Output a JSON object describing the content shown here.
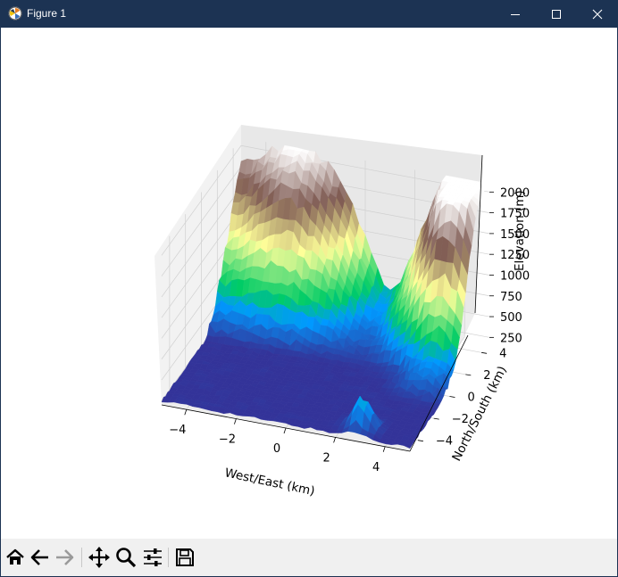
{
  "window": {
    "title": "Figure 1",
    "controls": [
      "minimize",
      "maximize",
      "close"
    ]
  },
  "toolbar": {
    "buttons": [
      "home-icon",
      "back-icon",
      "forward-icon",
      "pan-icon",
      "zoom-icon",
      "configure-subplots-icon",
      "save-icon"
    ]
  },
  "chart_data": {
    "type": "surface",
    "title": "",
    "xlabel": "West/East (km)",
    "ylabel": "North/South (km)",
    "zlabel": "Elevation (m)",
    "x_ticks": [
      "−4",
      "−2",
      "0",
      "2",
      "4"
    ],
    "y_ticks": [
      "−4",
      "−2",
      "0",
      "2",
      "4"
    ],
    "z_ticks": [
      "250",
      "500",
      "750",
      "1000",
      "1250",
      "1500",
      "1750",
      "2000"
    ],
    "xlim": [
      -5,
      5
    ],
    "ylim": [
      -5,
      5
    ],
    "zlim": [
      200,
      2100
    ],
    "colormap": "terrain",
    "grid": true,
    "peaks": [
      {
        "x": -2.7,
        "y": 4.0,
        "elevation": 2000
      },
      {
        "x": 4.0,
        "y": 3.0,
        "elevation": 2100
      }
    ],
    "base_elevation": 250
  }
}
